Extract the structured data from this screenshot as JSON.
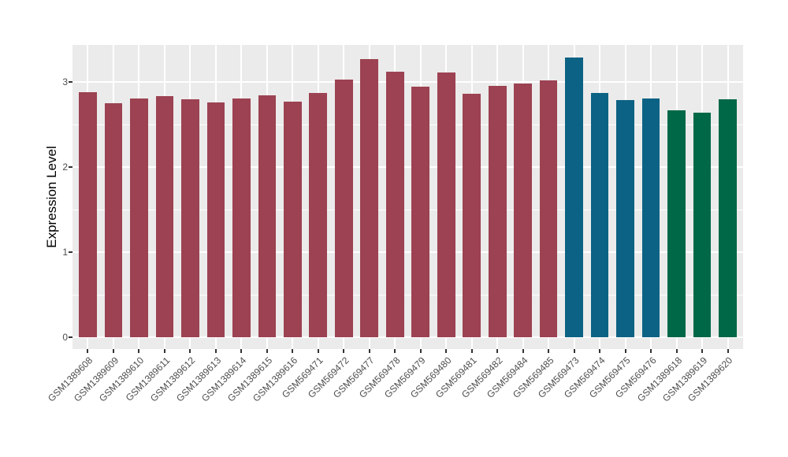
{
  "figure": {
    "background": "#FFFFFF",
    "panel_background": "#EBEBEB",
    "grid_color": "#FFFFFF",
    "tick_mark_color": "#333333",
    "tick_label_color": "#4D4D4D",
    "axis_title_color": "#000000"
  },
  "chart_data": {
    "type": "bar",
    "title": "",
    "xlabel": "",
    "ylabel": "Expression Level",
    "legend": "none",
    "grid": "white major+minor horizontal lines and major vertical lines on gray panel",
    "ylim": [
      -0.14,
      3.44
    ],
    "yticks": [
      0,
      1,
      2,
      3
    ],
    "ytick_labels": [
      "0",
      "1",
      "2",
      "3"
    ],
    "minor_yticks": [
      0.5,
      1.5,
      2.5
    ],
    "palette": {
      "group1_maroon": "#9C4252",
      "group2_teal": "#0C6284",
      "group3_green": "#006847"
    },
    "categories": [
      "GSM1389608",
      "GSM1389609",
      "GSM1389610",
      "GSM1389611",
      "GSM1389612",
      "GSM1389613",
      "GSM1389614",
      "GSM1389615",
      "GSM1389616",
      "GSM569471",
      "GSM569472",
      "GSM569477",
      "GSM569478",
      "GSM569479",
      "GSM569480",
      "GSM569481",
      "GSM569482",
      "GSM569484",
      "GSM569485",
      "GSM569473",
      "GSM569474",
      "GSM569475",
      "GSM569476",
      "GSM1389618",
      "GSM1389619",
      "GSM1389620"
    ],
    "values": [
      2.88,
      2.75,
      2.81,
      2.83,
      2.8,
      2.76,
      2.81,
      2.84,
      2.77,
      2.87,
      3.03,
      3.27,
      3.12,
      2.94,
      3.11,
      2.86,
      2.95,
      2.98,
      3.02,
      3.29,
      2.87,
      2.79,
      2.81,
      2.67,
      2.64,
      2.8
    ],
    "bar_groups": [
      "group1_maroon",
      "group1_maroon",
      "group1_maroon",
      "group1_maroon",
      "group1_maroon",
      "group1_maroon",
      "group1_maroon",
      "group1_maroon",
      "group1_maroon",
      "group1_maroon",
      "group1_maroon",
      "group1_maroon",
      "group1_maroon",
      "group1_maroon",
      "group1_maroon",
      "group1_maroon",
      "group1_maroon",
      "group1_maroon",
      "group1_maroon",
      "group2_teal",
      "group2_teal",
      "group2_teal",
      "group2_teal",
      "group3_green",
      "group3_green",
      "group3_green"
    ]
  }
}
